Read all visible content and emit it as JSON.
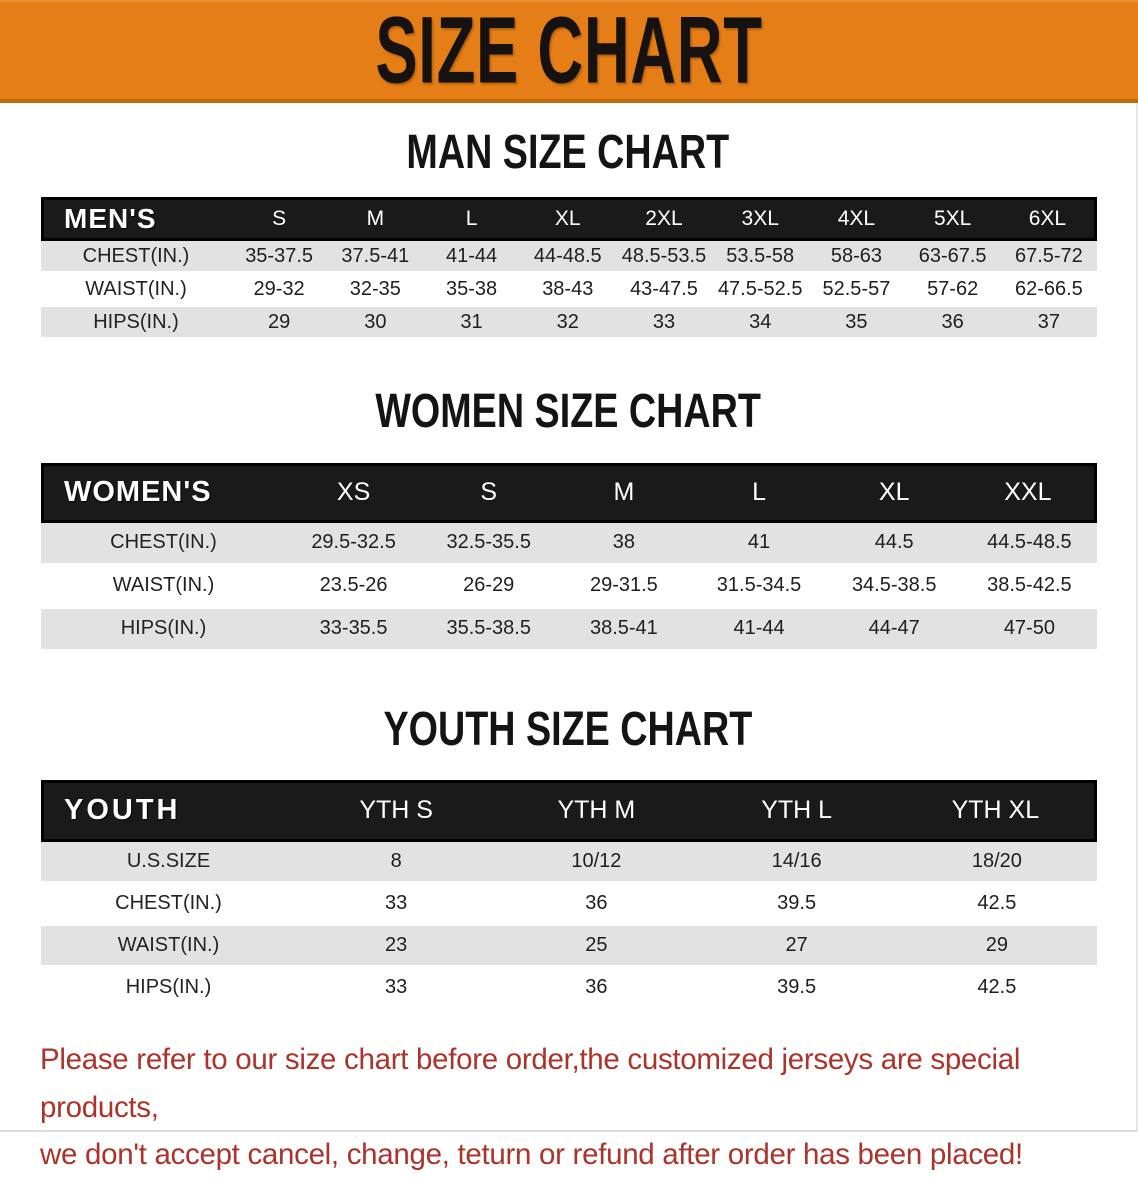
{
  "banner": {
    "title": "SIZE CHART"
  },
  "colors": {
    "banner_orange": "#E67E17",
    "banner_shadow": "#C2690D",
    "header_bar_black": "#1A1A1A",
    "row_gray": "#E2E2E2",
    "footer_red": "#AB332C"
  },
  "sections": {
    "man": {
      "heading": "MAN SIZE CHART"
    },
    "women": {
      "heading": "WOMEN SIZE CHART"
    },
    "youth": {
      "heading": "YOUTH SIZE CHART"
    }
  },
  "tables": [
    {
      "corner": "MEN'S",
      "columns": [
        "S",
        "M",
        "L",
        "XL",
        "2XL",
        "3XL",
        "4XL",
        "5XL",
        "6XL"
      ],
      "rows": [
        {
          "label": "CHEST(IN.)",
          "values": [
            "35-37.5",
            "37.5-41",
            "41-44",
            "44-48.5",
            "48.5-53.5",
            "53.5-58",
            "58-63",
            "63-67.5",
            "67.5-72"
          ]
        },
        {
          "label": "WAIST(IN.)",
          "values": [
            "29-32",
            "32-35",
            "35-38",
            "38-43",
            "43-47.5",
            "47.5-52.5",
            "52.5-57",
            "57-62",
            "62-66.5"
          ]
        },
        {
          "label": "HIPS(IN.)",
          "values": [
            "29",
            "30",
            "31",
            "32",
            "33",
            "34",
            "35",
            "36",
            "37"
          ]
        }
      ]
    },
    {
      "corner": "WOMEN'S",
      "columns": [
        "XS",
        "S",
        "M",
        "L",
        "XL",
        "XXL"
      ],
      "rows": [
        {
          "label": "CHEST(IN.)",
          "values": [
            "29.5-32.5",
            "32.5-35.5",
            "38",
            "41",
            "44.5",
            "44.5-48.5"
          ]
        },
        {
          "label": "WAIST(IN.)",
          "values": [
            "23.5-26",
            "26-29",
            "29-31.5",
            "31.5-34.5",
            "34.5-38.5",
            "38.5-42.5"
          ]
        },
        {
          "label": "HIPS(IN.)",
          "values": [
            "33-35.5",
            "35.5-38.5",
            "38.5-41",
            "41-44",
            "44-47",
            "47-50"
          ]
        }
      ]
    },
    {
      "corner": "YOUTH",
      "columns": [
        "YTH S",
        "YTH M",
        "YTH L",
        "YTH XL"
      ],
      "rows": [
        {
          "label": "U.S.SIZE",
          "values": [
            "8",
            "10/12",
            "14/16",
            "18/20"
          ]
        },
        {
          "label": "CHEST(IN.)",
          "values": [
            "33",
            "36",
            "39.5",
            "42.5"
          ]
        },
        {
          "label": "WAIST(IN.)",
          "values": [
            "23",
            "25",
            "27",
            "29"
          ]
        },
        {
          "label": "HIPS(IN.)",
          "values": [
            "33",
            "36",
            "39.5",
            "42.5"
          ]
        }
      ]
    }
  ],
  "footer": {
    "line1": "Please refer to our size chart before order,the customized jerseys are special products,",
    "line2": "we don't accept cancel, change, teturn or refund after order has been placed!"
  }
}
